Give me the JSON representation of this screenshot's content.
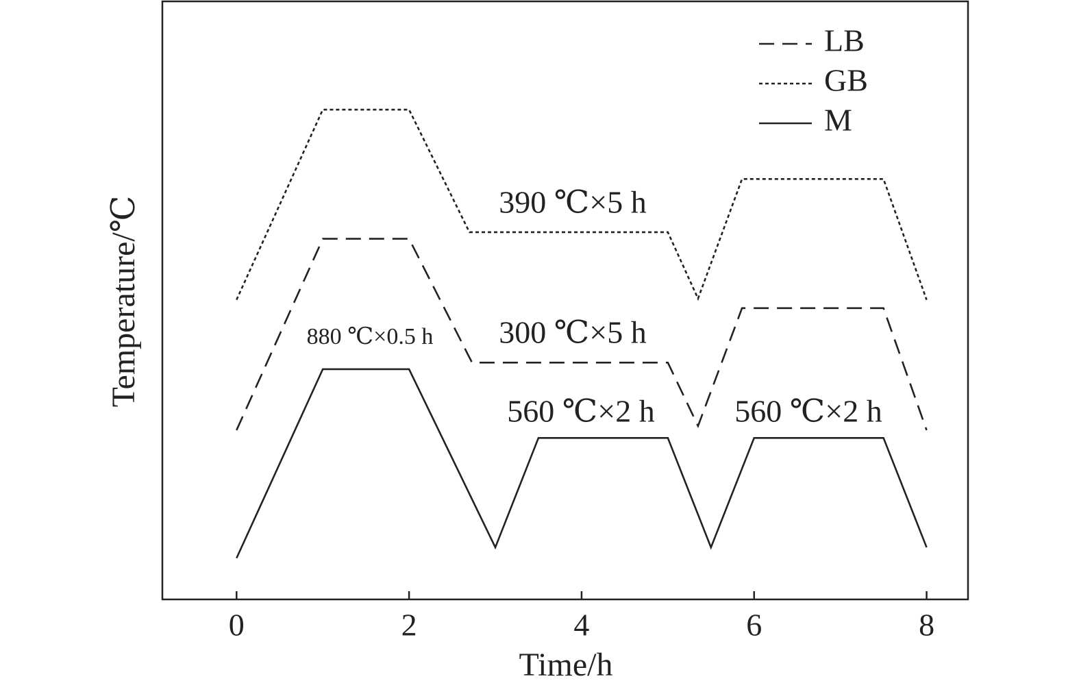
{
  "chart_data": {
    "type": "line",
    "x_label": "Time/h",
    "y_label": "Temperature/℃",
    "xlim": [
      -0.86,
      8.48
    ],
    "ylim": [
      0,
      100
    ],
    "xticks": [
      0,
      2,
      4,
      6,
      8
    ],
    "legend": "upper right",
    "annotations": [
      "390 ℃×5 h",
      "300 ℃×5 h",
      "880 ℃×0.5 h",
      "560 ℃×2 h",
      "560 ℃×2 h"
    ],
    "series": [
      {
        "name": "LB",
        "color": "#222222",
        "style": "dashed",
        "x": [
          0,
          1,
          2,
          2.73,
          5,
          5.35,
          5.86,
          7.5,
          8
        ],
        "values": [
          28.3,
          60.3,
          60.3,
          39.6,
          39.6,
          29.0,
          48.7,
          48.7,
          28.3
        ]
      },
      {
        "name": "GB",
        "color": "#222222",
        "style": "dotted",
        "x": [
          0,
          1,
          2,
          2.7,
          5,
          5.35,
          5.86,
          7.5,
          8
        ],
        "values": [
          50.1,
          81.9,
          81.9,
          61.4,
          61.4,
          50.3,
          70.3,
          70.3,
          50.1
        ]
      },
      {
        "name": "M",
        "color": "#222222",
        "style": "solid",
        "x": [
          0,
          1,
          2,
          3,
          3.5,
          5,
          5.5,
          6,
          7.5,
          8
        ],
        "values": [
          6.9,
          38.5,
          38.5,
          8.7,
          27.0,
          27.0,
          8.7,
          27.0,
          27.0,
          8.7
        ]
      }
    ]
  }
}
